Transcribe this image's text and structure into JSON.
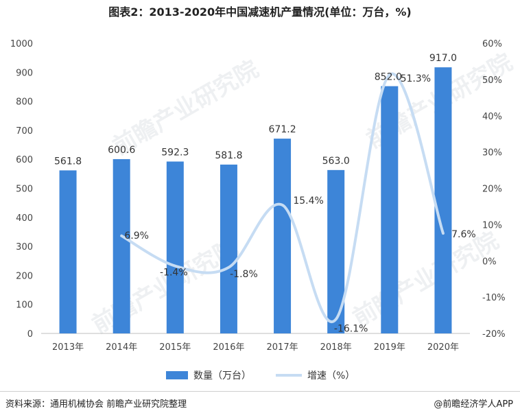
{
  "title": "图表2：2013-2020年中国减速机产量情况(单位：万台，%)",
  "source": "资料来源：通用机械协会 前瞻产业研究院整理",
  "brand": "@前瞻经济学人APP",
  "watermark": "前瞻产业研究院",
  "chart_data": {
    "type": "bar",
    "categories": [
      "2013年",
      "2014年",
      "2015年",
      "2016年",
      "2017年",
      "2018年",
      "2019年",
      "2020年"
    ],
    "series": [
      {
        "name": "数量（万台）",
        "type": "bar",
        "axis": "left",
        "color": "#3d85d8",
        "values": [
          561.8,
          600.6,
          592.3,
          581.8,
          671.2,
          563.0,
          852.0,
          917.0
        ],
        "labels": [
          "561.8",
          "600.6",
          "592.3",
          "581.8",
          "671.2",
          "563.0",
          "852.0",
          "917.0"
        ]
      },
      {
        "name": "增速（%）",
        "type": "line",
        "axis": "right",
        "color": "#c6dcf3",
        "values": [
          null,
          6.9,
          -1.4,
          -1.8,
          15.4,
          -16.1,
          51.3,
          7.6
        ],
        "labels": [
          "",
          "6.9%",
          "-1.4%",
          "-1.8%",
          "15.4%",
          "-16.1%",
          "51.3%",
          "7.6%"
        ]
      }
    ],
    "ylim_left": [
      0,
      1000
    ],
    "yticks_left": [
      "0",
      "100",
      "200",
      "300",
      "400",
      "500",
      "600",
      "700",
      "800",
      "900",
      "1000"
    ],
    "ylim_right": [
      -20,
      60
    ],
    "yticks_right": [
      "-20%",
      "-10%",
      "0%",
      "10%",
      "20%",
      "30%",
      "40%",
      "50%",
      "60%"
    ],
    "grid": false,
    "legend": "bottom-center"
  }
}
